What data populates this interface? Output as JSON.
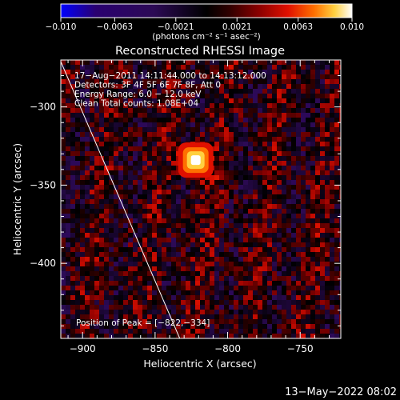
{
  "chart_data": {
    "type": "heatmap",
    "title": "Reconstructed RHESSI Image",
    "xlabel": "Heliocentric X (arcsec)",
    "ylabel": "Heliocentric Y (arcsec)",
    "xlim": [
      -915,
      -722
    ],
    "ylim": [
      -448,
      -270
    ],
    "xticks": [
      -900,
      -850,
      -800,
      -750
    ],
    "xtick_labels": [
      "−900",
      "−850",
      "−800",
      "−750"
    ],
    "yticks": [
      -300,
      -350,
      -400
    ],
    "ytick_labels": [
      "−300",
      "−350",
      "−400"
    ],
    "colorbar": {
      "range": [
        -0.01,
        0.01
      ],
      "ticks": [
        -0.01,
        -0.0063,
        -0.0021,
        0.0021,
        0.0063,
        0.01
      ],
      "tick_labels": [
        "−0.010",
        "−0.0063",
        "−0.0021",
        "0.0021",
        "0.0063",
        "0.010"
      ],
      "unit_label": "(photons cm⁻² s⁻¹ asec⁻²)",
      "colormap": [
        "#0000ff",
        "#2a0070",
        "#2c0a55",
        "#000000",
        "#300000",
        "#8a0000",
        "#e01000",
        "#ff7000",
        "#ffd040",
        "#ffffff"
      ]
    },
    "source": {
      "x": -822,
      "y": -334,
      "peak_value": 0.01
    },
    "limb_line": {
      "from": [
        -915,
        -271
      ],
      "to": [
        -833,
        -448
      ]
    },
    "annotations": [
      "17−Aug−2011 14:11:44.000 to 14:13:12.000",
      "Detectors: 3F 4F 5F 6F 7F 8F, Att 0",
      "Energy Range: 6.0 − 12.0 keV",
      "Clean    Total counts: 1.08E+04"
    ],
    "peak_label": "Position of Peak = [−822,−334]",
    "footer_date": "13−May−2022 08:02"
  }
}
